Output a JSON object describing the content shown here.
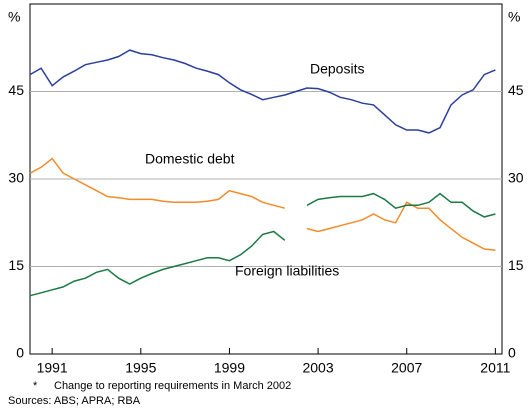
{
  "chart_data": {
    "type": "line",
    "y_unit_left": "%",
    "y_unit_right": "%",
    "x": [
      1990,
      1990.5,
      1991,
      1991.5,
      1992,
      1992.5,
      1993,
      1993.5,
      1994,
      1994.5,
      1995,
      1995.5,
      1996,
      1996.5,
      1997,
      1997.5,
      1998,
      1998.5,
      1999,
      1999.5,
      2000,
      2000.5,
      2001,
      2001.5,
      2002,
      2002.5,
      2003,
      2003.5,
      2004,
      2004.5,
      2005,
      2005.5,
      2006,
      2006.5,
      2007,
      2007.5,
      2008,
      2008.5,
      2009,
      2009.5,
      2010,
      2010.5,
      2011
    ],
    "series": [
      {
        "name": "Deposits",
        "color": "#2b3f9c",
        "values": [
          47.9,
          49,
          46,
          47.5,
          48.5,
          49.6,
          50,
          50.4,
          51,
          52.1,
          51.5,
          51.3,
          50.8,
          50.4,
          49.8,
          49,
          48.5,
          47.9,
          46.5,
          45.3,
          44.5,
          43.6,
          44,
          44.4,
          45,
          45.6,
          45.5,
          44.9,
          44,
          43.6,
          43,
          42.7,
          41,
          39.3,
          38.4,
          38.4,
          37.9,
          38.8,
          42.7,
          44.4,
          45.3,
          47.9,
          48.7
        ]
      },
      {
        "name": "Domestic debt",
        "color": "#f28c28",
        "values": [
          31,
          32,
          33.5,
          31,
          30,
          29,
          28,
          27,
          26.8,
          26.5,
          26.5,
          26.5,
          26.2,
          26,
          26,
          26,
          26.2,
          26.5,
          28,
          27.5,
          27,
          26,
          25.5,
          25,
          null,
          21.5,
          21,
          21.5,
          22,
          22.5,
          23,
          24,
          23,
          22.5,
          26,
          25,
          25,
          23,
          21.5,
          20,
          19,
          18,
          17.8
        ]
      },
      {
        "name": "Foreign liabilities",
        "color": "#1b7a44",
        "values": [
          10,
          10.5,
          11,
          11.5,
          12.5,
          13,
          14,
          14.5,
          13,
          12,
          13,
          13.8,
          14.5,
          15,
          15.5,
          16,
          16.5,
          16.5,
          16,
          17,
          18.5,
          20.5,
          21,
          19.5,
          null,
          25.5,
          26.5,
          26.8,
          27,
          27,
          27,
          27.5,
          26.5,
          25,
          25.5,
          25.5,
          26,
          27.5,
          26,
          26,
          24.5,
          23.5,
          24
        ]
      }
    ],
    "xlim": [
      1990,
      2011.3
    ],
    "xticks": [
      1991,
      1995,
      1999,
      2003,
      2007,
      2011
    ],
    "ylim": [
      0,
      60
    ],
    "yticks": [
      0,
      15,
      30,
      45
    ],
    "grid": true,
    "footnote_marker": "*",
    "footnote": "Change to reporting requirements in March 2002",
    "sources": "Sources: ABS; APRA; RBA"
  }
}
